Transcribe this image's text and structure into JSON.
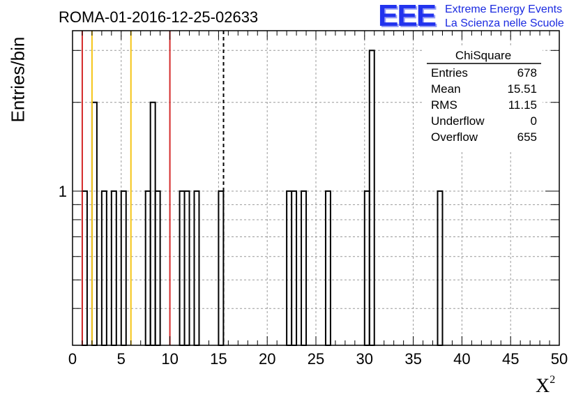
{
  "title": "ROMA-01-2016-12-25-02633",
  "logo": {
    "mark": "EEE",
    "line1": "Extreme Energy Events",
    "line2": "La Scienza nelle Scuole"
  },
  "stats": {
    "name": "ChiSquare",
    "rows": [
      {
        "label": "Entries",
        "value": "678"
      },
      {
        "label": "Mean",
        "value": "15.51"
      },
      {
        "label": "RMS",
        "value": "11.15"
      },
      {
        "label": "Underflow",
        "value": "0"
      },
      {
        "label": "Overflow",
        "value": "655"
      }
    ]
  },
  "chart_data": {
    "type": "bar",
    "histogram": true,
    "xlabel": "X",
    "xlabel_superscript": "2",
    "ylabel": "Entries/bin",
    "xlim": [
      0,
      50
    ],
    "ylim_log": [
      0.3,
      3.5
    ],
    "log_y": true,
    "grid": true,
    "bin_width": 0.5,
    "xticks": [
      0,
      5,
      10,
      15,
      20,
      25,
      30,
      35,
      40,
      45,
      50
    ],
    "ytick_labels": [
      {
        "value": 1,
        "label": "1"
      }
    ],
    "bins": [
      {
        "x": 1.0,
        "y": 1
      },
      {
        "x": 2.0,
        "y": 2
      },
      {
        "x": 3.0,
        "y": 1
      },
      {
        "x": 4.0,
        "y": 1
      },
      {
        "x": 5.0,
        "y": 1
      },
      {
        "x": 7.5,
        "y": 1
      },
      {
        "x": 8.0,
        "y": 2
      },
      {
        "x": 8.5,
        "y": 1
      },
      {
        "x": 11.0,
        "y": 1
      },
      {
        "x": 11.5,
        "y": 1
      },
      {
        "x": 12.5,
        "y": 1
      },
      {
        "x": 15.0,
        "y": 1
      },
      {
        "x": 22.0,
        "y": 1
      },
      {
        "x": 22.5,
        "y": 1
      },
      {
        "x": 23.5,
        "y": 1
      },
      {
        "x": 26.0,
        "y": 1
      },
      {
        "x": 30.0,
        "y": 1
      },
      {
        "x": 30.5,
        "y": 3
      },
      {
        "x": 37.5,
        "y": 1
      }
    ],
    "vertical_lines": [
      {
        "x": 1.0,
        "color": "#d42a2a",
        "style": "solid"
      },
      {
        "x": 2.0,
        "color": "#f5c518",
        "style": "solid"
      },
      {
        "x": 6.0,
        "color": "#f5c518",
        "style": "solid"
      },
      {
        "x": 10.0,
        "color": "#d42a2a",
        "style": "solid"
      },
      {
        "x": 15.51,
        "color": "#000000",
        "style": "dashed"
      }
    ]
  }
}
